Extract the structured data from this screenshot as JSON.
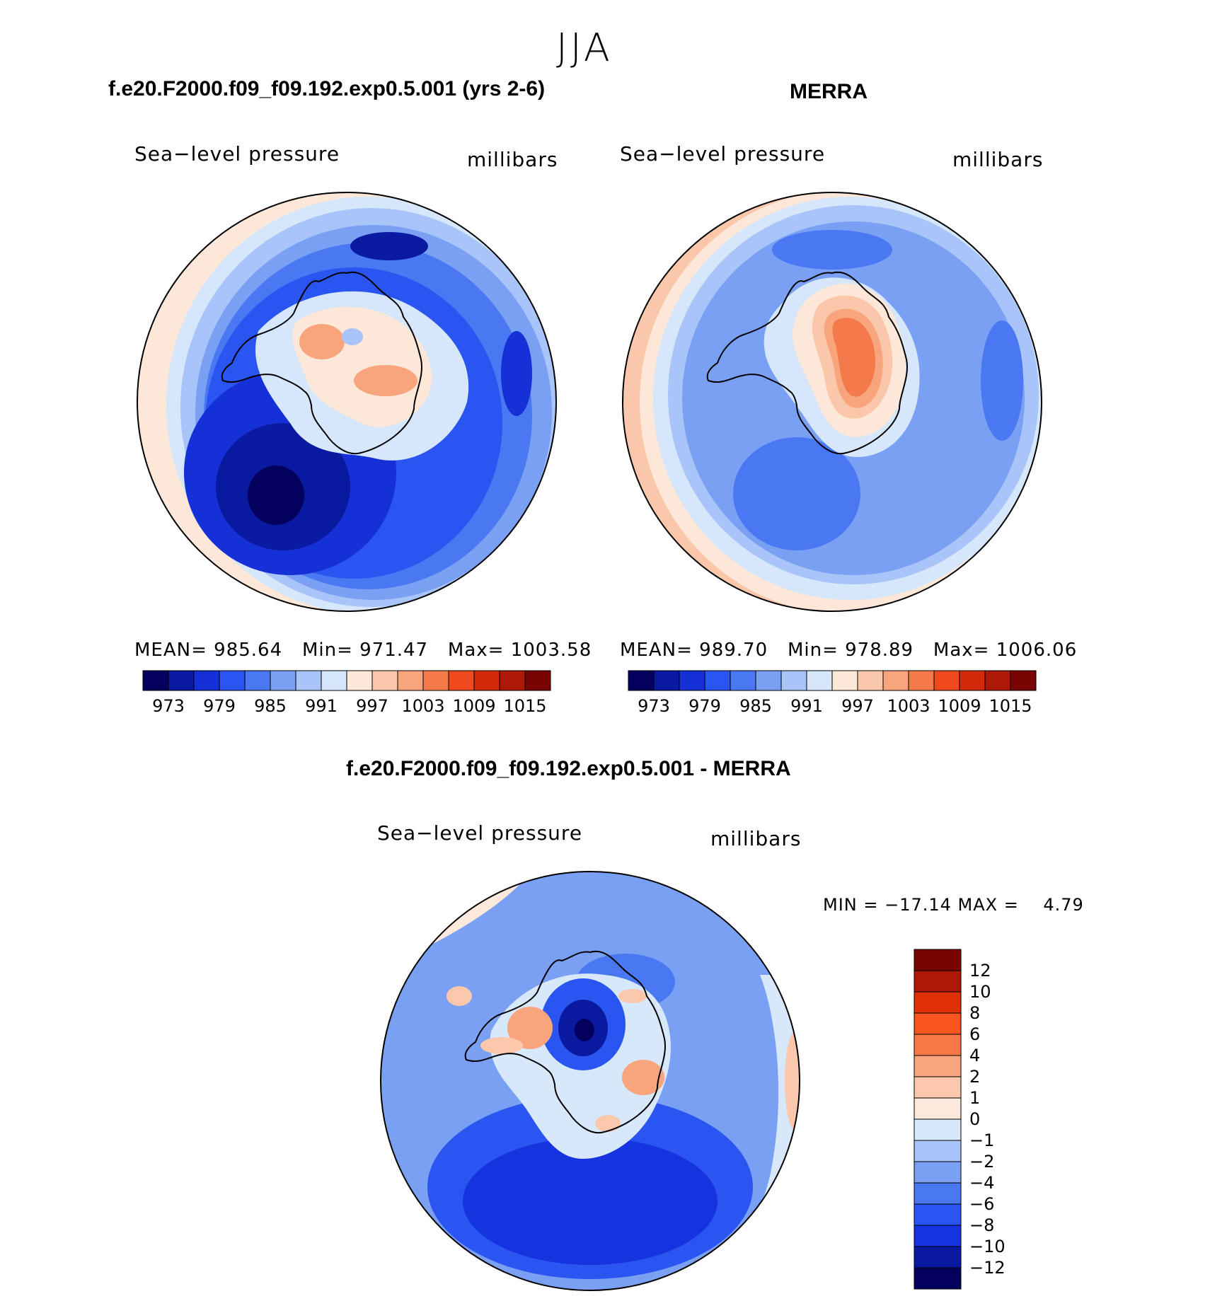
{
  "season_title": "JJA",
  "panels": [
    {
      "title": "f.e20.F2000.f09_f09.192.exp0.5.001 (yrs 2-6)",
      "variable": "Sea−level pressure",
      "units": "millibars",
      "stats": {
        "mean_label": "MEAN=",
        "mean": "985.64",
        "min_label": "Min=",
        "min": "971.47",
        "max_label": "Max=",
        "max": "1003.58"
      }
    },
    {
      "title": "MERRA",
      "variable": "Sea−level pressure",
      "units": "millibars",
      "stats": {
        "mean_label": "MEAN=",
        "mean": "989.70",
        "min_label": "Min=",
        "min": "978.89",
        "max_label": "Max=",
        "max": "1006.06"
      }
    }
  ],
  "diff_panel": {
    "title": "f.e20.F2000.f09_f09.192.exp0.5.001 - MERRA",
    "variable": "Sea−level pressure",
    "units": "millibars",
    "minmax": "MIN = −17.14 MAX =    4.79"
  },
  "abs_colorbar": {
    "colors": [
      "#04005e",
      "#0a1aa0",
      "#1530d6",
      "#2a55f0",
      "#4a78f2",
      "#7aa0f4",
      "#a8c4f8",
      "#d6e6fb",
      "#fde7d8",
      "#fbc7aa",
      "#f8a47c",
      "#f47a4c",
      "#ee4a1e",
      "#d42a0c",
      "#ae1806",
      "#7a0404"
    ],
    "labels": [
      "973",
      "979",
      "985",
      "991",
      "997",
      "1003",
      "1009",
      "1015"
    ]
  },
  "diff_colorbar": {
    "colors_top_to_bottom": [
      "#7a0404",
      "#ae1806",
      "#e03008",
      "#f85520",
      "#f87848",
      "#f8a47c",
      "#fbc8ac",
      "#fde8dc",
      "#d8e8fb",
      "#a8c4f8",
      "#7aa0f4",
      "#4a78f2",
      "#2a55f0",
      "#1534e0",
      "#0a1aa0",
      "#04005e"
    ],
    "labels_top_to_bottom": [
      "12",
      "10",
      "8",
      "6",
      "4",
      "2",
      "1",
      "0",
      "−1",
      "−2",
      "−4",
      "−6",
      "−8",
      "−10",
      "−12"
    ]
  }
}
